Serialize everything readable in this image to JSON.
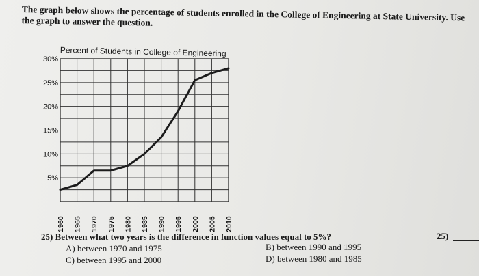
{
  "intro": {
    "line1": "The graph below shows the percentage of students enrolled in the College of Engineering at State University. Use",
    "line2": "the graph to answer the question."
  },
  "chart_data": {
    "type": "line",
    "title": "Percent of Students in College of Engineering",
    "xlabel": "",
    "ylabel": "",
    "x": [
      1960,
      1965,
      1970,
      1975,
      1980,
      1985,
      1990,
      1995,
      2000,
      2005,
      2010
    ],
    "y_tick_labels": [
      "30%",
      "25%",
      "20%",
      "15%",
      "10%",
      "5%"
    ],
    "ylim": [
      0,
      30
    ],
    "grid": true,
    "series": [
      {
        "name": "",
        "x": [
          1960,
          1965,
          1970,
          1975,
          1980,
          1985,
          1990,
          1995,
          2000,
          2005,
          2010
        ],
        "y": [
          2.5,
          3.5,
          6.5,
          6.5,
          7.5,
          10,
          13.5,
          19,
          25.5,
          27,
          28
        ]
      }
    ]
  },
  "question": {
    "text": "25) Between what two years is the difference in function values equal to 5%?",
    "choices": [
      {
        "label": "A) between 1970 and 1975"
      },
      {
        "label": "B) between 1990 and 1995"
      },
      {
        "label": "C) between 1995 and 2000"
      },
      {
        "label": "D) between 1980 and 1985"
      }
    ],
    "answer_label": "25)"
  }
}
